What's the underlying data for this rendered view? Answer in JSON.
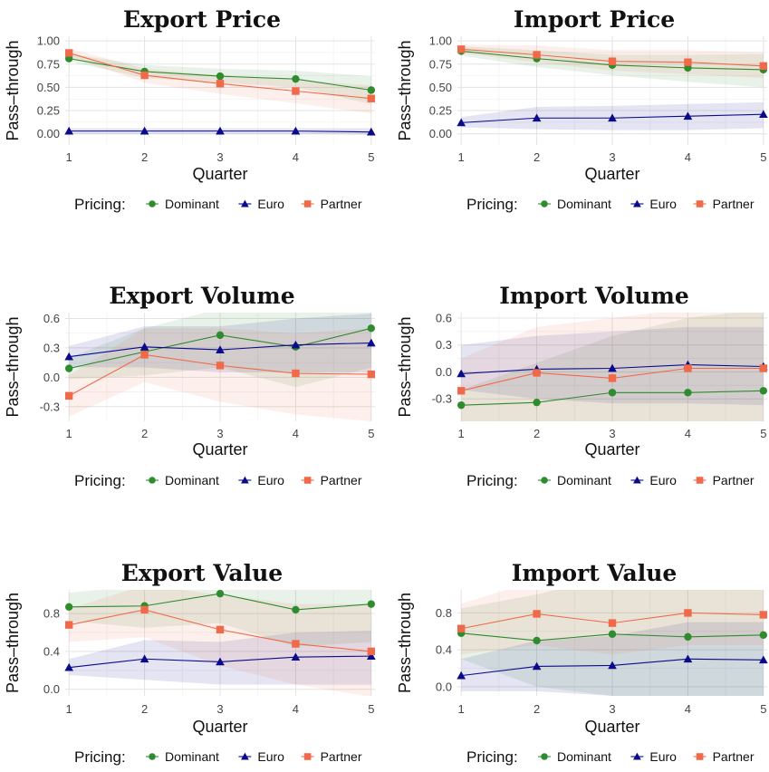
{
  "legend": {
    "title": "Pricing:",
    "entries": [
      {
        "name": "Dominant",
        "color": "#2e8b2e",
        "shape": "circle"
      },
      {
        "name": "Euro",
        "color": "#0a0a8a",
        "shape": "triangle"
      },
      {
        "name": "Partner",
        "color": "#f06a4a",
        "shape": "square"
      }
    ]
  },
  "chart_data": [
    {
      "type": "line",
      "title": "Export Price",
      "xlabel": "Quarter",
      "ylabel": "Pass–through",
      "x": [
        1,
        2,
        3,
        4,
        5
      ],
      "xlim": [
        0.95,
        5.05
      ],
      "ylim": [
        -0.12,
        1.05
      ],
      "yticks": [
        0.0,
        0.25,
        0.5,
        0.75,
        1.0
      ],
      "ytick_labels": [
        "0.00",
        "0.25",
        "0.50",
        "0.75",
        "1.00"
      ],
      "series": [
        {
          "name": "Dominant",
          "values": [
            0.81,
            0.67,
            0.62,
            0.59,
            0.47
          ],
          "lower": [
            0.78,
            0.6,
            0.55,
            0.5,
            0.32
          ],
          "upper": [
            0.86,
            0.74,
            0.7,
            0.68,
            0.62
          ]
        },
        {
          "name": "Euro",
          "values": [
            0.03,
            0.03,
            0.03,
            0.03,
            0.02
          ],
          "lower": [
            0.0,
            0.0,
            0.0,
            0.0,
            -0.01
          ],
          "upper": [
            0.06,
            0.06,
            0.06,
            0.06,
            0.06
          ]
        },
        {
          "name": "Partner",
          "values": [
            0.87,
            0.63,
            0.54,
            0.46,
            0.38
          ],
          "lower": [
            0.83,
            0.55,
            0.43,
            0.33,
            0.22
          ],
          "upper": [
            0.92,
            0.7,
            0.63,
            0.58,
            0.52
          ]
        }
      ]
    },
    {
      "type": "line",
      "title": "Import Price",
      "xlabel": "Quarter",
      "ylabel": "Pass–through",
      "x": [
        1,
        2,
        3,
        4,
        5
      ],
      "xlim": [
        0.95,
        5.05
      ],
      "ylim": [
        -0.12,
        1.05
      ],
      "yticks": [
        0.0,
        0.25,
        0.5,
        0.75,
        1.0
      ],
      "ytick_labels": [
        "0.00",
        "0.25",
        "0.50",
        "0.75",
        "1.00"
      ],
      "series": [
        {
          "name": "Dominant",
          "values": [
            0.89,
            0.81,
            0.74,
            0.71,
            0.69
          ],
          "lower": [
            0.84,
            0.72,
            0.63,
            0.56,
            0.5
          ],
          "upper": [
            0.94,
            0.9,
            0.85,
            0.85,
            0.86
          ]
        },
        {
          "name": "Euro",
          "values": [
            0.12,
            0.17,
            0.17,
            0.19,
            0.21
          ],
          "lower": [
            0.07,
            0.05,
            0.04,
            0.04,
            0.06
          ],
          "upper": [
            0.18,
            0.29,
            0.3,
            0.32,
            0.34
          ]
        },
        {
          "name": "Partner",
          "values": [
            0.91,
            0.85,
            0.78,
            0.77,
            0.73
          ],
          "lower": [
            0.87,
            0.77,
            0.68,
            0.64,
            0.6
          ],
          "upper": [
            0.96,
            0.95,
            0.9,
            0.9,
            0.88
          ]
        }
      ]
    },
    {
      "type": "line",
      "title": "Export Volume",
      "xlabel": "Quarter",
      "ylabel": "Pass–through",
      "x": [
        1,
        2,
        3,
        4,
        5
      ],
      "xlim": [
        0.95,
        5.05
      ],
      "ylim": [
        -0.45,
        0.66
      ],
      "yticks": [
        -0.3,
        0.0,
        0.3,
        0.6
      ],
      "ytick_labels": [
        "-0.3",
        "0.0",
        "0.3",
        "0.6"
      ],
      "series": [
        {
          "name": "Dominant",
          "values": [
            0.09,
            0.26,
            0.43,
            0.31,
            0.5
          ],
          "lower": [
            -0.02,
            0.02,
            0.1,
            -0.1,
            0.1
          ],
          "upper": [
            0.2,
            0.5,
            0.7,
            0.7,
            0.9
          ]
        },
        {
          "name": "Euro",
          "values": [
            0.21,
            0.31,
            0.28,
            0.33,
            0.35
          ],
          "lower": [
            0.1,
            0.1,
            0.05,
            0.05,
            0.05
          ],
          "upper": [
            0.32,
            0.52,
            0.52,
            0.6,
            0.65
          ]
        },
        {
          "name": "Partner",
          "values": [
            -0.19,
            0.23,
            0.12,
            0.04,
            0.03
          ],
          "lower": [
            -0.4,
            -0.05,
            -0.25,
            -0.38,
            -0.45
          ],
          "upper": [
            0.02,
            0.5,
            0.5,
            0.45,
            0.5
          ]
        }
      ]
    },
    {
      "type": "line",
      "title": "Import Volume",
      "xlabel": "Quarter",
      "ylabel": "Pass–through",
      "x": [
        1,
        2,
        3,
        4,
        5
      ],
      "xlim": [
        0.95,
        5.05
      ],
      "ylim": [
        -0.55,
        0.66
      ],
      "yticks": [
        -0.3,
        0.0,
        0.3,
        0.6
      ],
      "ytick_labels": [
        "-0.3",
        "0.0",
        "0.3",
        "0.6"
      ],
      "series": [
        {
          "name": "Dominant",
          "values": [
            -0.37,
            -0.34,
            -0.23,
            -0.23,
            -0.21
          ],
          "lower": [
            -0.55,
            -0.6,
            -0.6,
            -0.6,
            -0.6
          ],
          "upper": [
            -0.2,
            0.1,
            0.4,
            0.6,
            0.7
          ]
        },
        {
          "name": "Euro",
          "values": [
            -0.02,
            0.03,
            0.04,
            0.08,
            0.06
          ],
          "lower": [
            -0.2,
            -0.3,
            -0.35,
            -0.35,
            -0.37
          ],
          "upper": [
            0.3,
            0.4,
            0.45,
            0.5,
            0.5
          ]
        },
        {
          "name": "Partner",
          "values": [
            -0.21,
            -0.01,
            -0.07,
            0.04,
            0.04
          ],
          "lower": [
            -0.55,
            -0.55,
            -0.6,
            -0.6,
            -0.6
          ],
          "upper": [
            0.15,
            0.5,
            0.6,
            0.7,
            0.7
          ]
        }
      ]
    },
    {
      "type": "line",
      "title": "Export Value",
      "xlabel": "Quarter",
      "ylabel": "Pass–through",
      "x": [
        1,
        2,
        3,
        4,
        5
      ],
      "xlim": [
        0.95,
        5.05
      ],
      "ylim": [
        -0.07,
        1.05
      ],
      "yticks": [
        0.0,
        0.4,
        0.8
      ],
      "ytick_labels": [
        "0.0",
        "0.4",
        "0.8"
      ],
      "series": [
        {
          "name": "Dominant",
          "values": [
            0.87,
            0.88,
            1.01,
            0.84,
            0.9
          ],
          "lower": [
            0.72,
            0.65,
            0.7,
            0.45,
            0.5
          ],
          "upper": [
            1.02,
            1.1,
            1.3,
            1.2,
            1.3
          ]
        },
        {
          "name": "Euro",
          "values": [
            0.23,
            0.32,
            0.29,
            0.34,
            0.35
          ],
          "lower": [
            0.15,
            0.1,
            0.05,
            0.05,
            0.05
          ],
          "upper": [
            0.32,
            0.52,
            0.5,
            0.6,
            0.62
          ]
        },
        {
          "name": "Partner",
          "values": [
            0.68,
            0.84,
            0.63,
            0.48,
            0.4
          ],
          "lower": [
            0.5,
            0.55,
            0.25,
            0.05,
            -0.08
          ],
          "upper": [
            0.85,
            1.1,
            1.0,
            0.9,
            0.9
          ]
        }
      ]
    },
    {
      "type": "line",
      "title": "Import Value",
      "xlabel": "Quarter",
      "ylabel": "Pass–through",
      "x": [
        1,
        2,
        3,
        4,
        5
      ],
      "xlim": [
        0.95,
        5.05
      ],
      "ylim": [
        -0.1,
        1.05
      ],
      "yticks": [
        0.0,
        0.4,
        0.8
      ],
      "ytick_labels": [
        "0.0",
        "0.4",
        "0.8"
      ],
      "series": [
        {
          "name": "Dominant",
          "values": [
            0.58,
            0.5,
            0.57,
            0.54,
            0.56
          ],
          "lower": [
            0.3,
            0.0,
            -0.1,
            -0.1,
            -0.1
          ],
          "upper": [
            0.85,
            1.0,
            1.2,
            1.3,
            1.3
          ]
        },
        {
          "name": "Euro",
          "values": [
            0.12,
            0.22,
            0.23,
            0.3,
            0.29
          ],
          "lower": [
            -0.05,
            -0.05,
            -0.1,
            -0.1,
            -0.1
          ],
          "upper": [
            0.3,
            0.5,
            0.55,
            0.7,
            0.7
          ]
        },
        {
          "name": "Partner",
          "values": [
            0.63,
            0.79,
            0.69,
            0.8,
            0.78
          ],
          "lower": [
            0.35,
            0.45,
            0.35,
            0.45,
            0.45
          ],
          "upper": [
            0.9,
            1.15,
            1.1,
            1.2,
            1.2
          ]
        }
      ]
    }
  ]
}
